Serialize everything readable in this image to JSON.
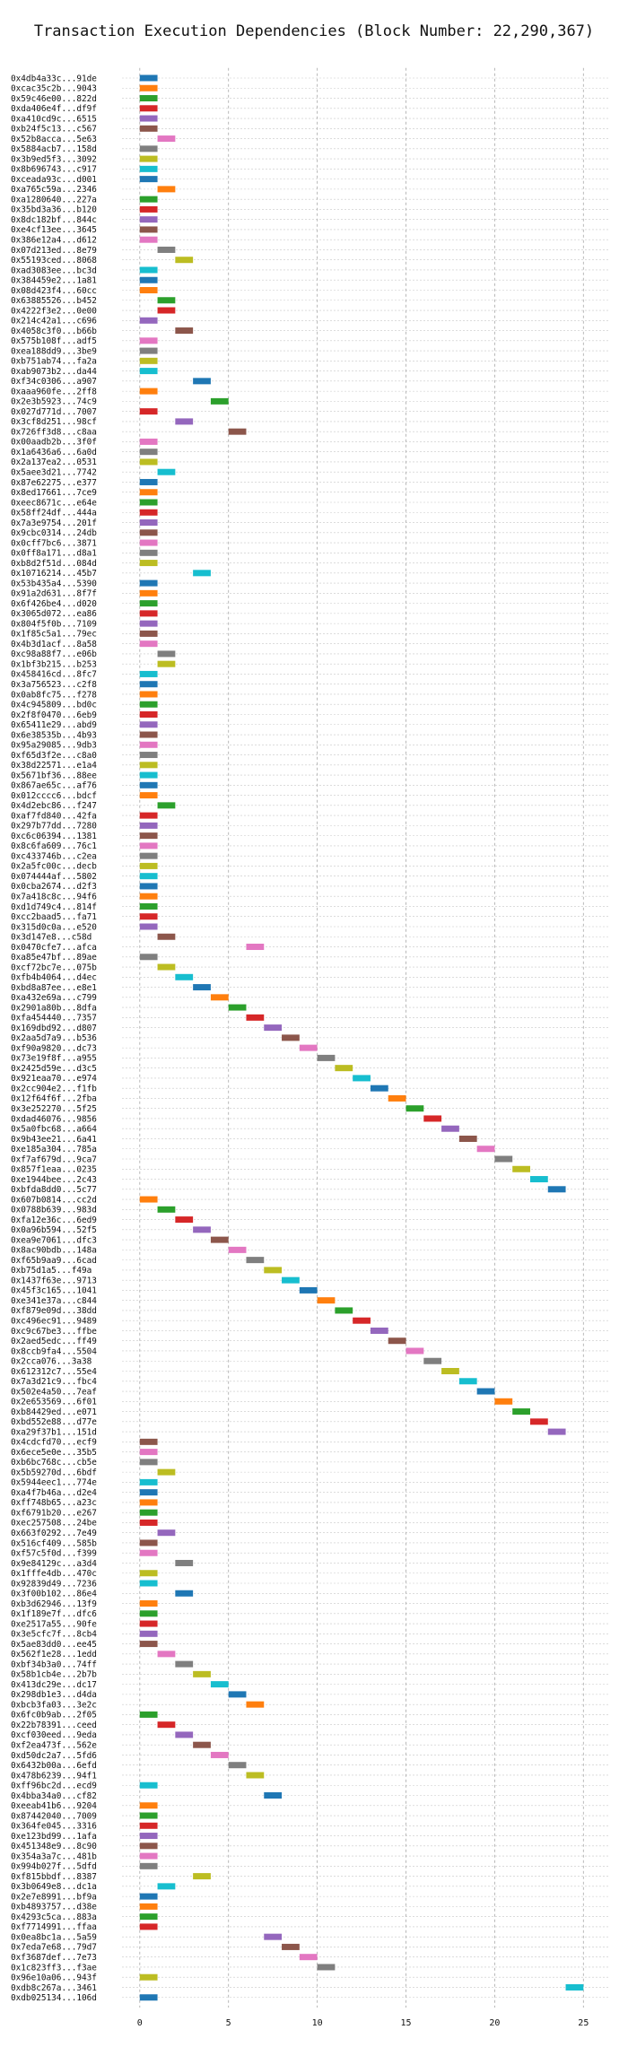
{
  "chart_data": {
    "type": "gantt",
    "title": "Transaction Execution Dependencies (Block Number: 22,290,367)",
    "xlabel": "",
    "ylabel": "",
    "xlim": [
      -1,
      26.5
    ],
    "xticks": [
      0,
      5,
      10,
      15,
      20,
      25
    ],
    "grid": true,
    "bar_width": 1,
    "palette": [
      "#1f77b4",
      "#ff7f0e",
      "#2ca02c",
      "#d62728",
      "#9467bd",
      "#8c564b",
      "#e377c2",
      "#7f7f7f",
      "#bcbd22",
      "#17becf"
    ],
    "transactions": [
      "0x4db4a33c...91de",
      "0xcac35c2b...9043",
      "0x59c46e00...822d",
      "0xda406e4f...df9f",
      "0xa410cd9c...6515",
      "0xb24f5c13...c567",
      "0x52b8acca...5e63",
      "0x5884acb7...158d",
      "0x3b9ed5f3...3092",
      "0x8b696743...c917",
      "0xceada93c...d001",
      "0xa765c59a...2346",
      "0xa1280640...227a",
      "0x35bd3a36...b120",
      "0x8dc182bf...844c",
      "0xe4cf13ee...3645",
      "0x386e12a4...d612",
      "0x07d213ed...8e79",
      "0x55193ced...8068",
      "0xad3083ee...bc3d",
      "0x384459e2...1a81",
      "0x08d423f4...60cc",
      "0x63885526...b452",
      "0x4222f3e2...0e00",
      "0x214c42a1...c696",
      "0x4058c3f0...b66b",
      "0x575b108f...adf5",
      "0xea188dd9...3be9",
      "0xb751ab74...fa2a",
      "0xab9073b2...da44",
      "0xf34c0306...a907",
      "0xaaa960fe...2ff8",
      "0x2e3b5923...74c9",
      "0x027d771d...7007",
      "0x3cf8d251...98cf",
      "0x726ff3d8...c8aa",
      "0x00aadb2b...3f0f",
      "0x1a6436a6...6a0d",
      "0x2a137ea2...0531",
      "0x5aee3d21...7742",
      "0x87e62275...e377",
      "0x8ed17661...7ce9",
      "0xeec8671c...e64e",
      "0x58ff24df...444a",
      "0x7a3e9754...201f",
      "0x9cbc0314...24db",
      "0x0cff7bc6...3871",
      "0x0ff8a171...d8a1",
      "0xb8d2f51d...084d",
      "0x10716214...45b7",
      "0x53b435a4...5390",
      "0x91a2d631...8f7f",
      "0x6f426be4...d020",
      "0x3065d072...ea86",
      "0x804f5f0b...7109",
      "0x1f85c5a1...79ec",
      "0x4b3d1acf...8a58",
      "0xc98a88f7...e06b",
      "0x1bf3b215...b253",
      "0x458416cd...8fc7",
      "0x3a756523...c2f8",
      "0x0ab8fc75...f278",
      "0x4c945809...bd0c",
      "0x2f8f0470...6eb9",
      "0x65411e29...abd9",
      "0x6e38535b...4b93",
      "0x95a29085...9db3",
      "0xf65d3f2e...c8a0",
      "0x38d22571...e1a4",
      "0x5671bf36...88ee",
      "0x867ae65c...af76",
      "0x012cccc6...bdcf",
      "0x4d2ebc86...f247",
      "0xaf7fd840...42fa",
      "0x297b77dd...7280",
      "0xc6c06394...1381",
      "0x8c6fa609...76c1",
      "0xc433746b...c2ea",
      "0x2a5fc00c...decb",
      "0x074444af...5802",
      "0x0cba2674...d2f3",
      "0x7a418c8c...94f6",
      "0xd1d749c4...814f",
      "0xcc2baad5...fa71",
      "0x315d0c0a...e520",
      "0x3d147e8...c58d",
      "0x0470cfe7...afca",
      "0xa85e47bf...89ae",
      "0xcf72bc7e...075b",
      "0xfb4b4064...d4ec",
      "0xbd8a87ee...e8e1",
      "0xa432e69a...c799",
      "0x2901a80b...8dfa",
      "0xfa454440...7357",
      "0x169dbd92...d807",
      "0x2aa5d7a9...b536",
      "0xf90a9820...dc73",
      "0x73e19f8f...a955",
      "0x2425d59e...d3c5",
      "0x921eaa70...e974",
      "0x2cc904e2...f1fb",
      "0x12f64f6f...2fba",
      "0x3e252270...5f25",
      "0xdad46076...9856",
      "0x5a0fbc68...a664",
      "0x9b43ee21...6a41",
      "0xe185a304...785a",
      "0xf7af679d...9ca7",
      "0x857f1eaa...0235",
      "0xe1944bee...2c43",
      "0xbfda8dd0...5c77",
      "0x607b0814...cc2d",
      "0x0788b639...983d",
      "0xfa12e36c...6ed9",
      "0x0a96b594...52f5",
      "0xea9e7061...dfc3",
      "0x8ac90bdb...148a",
      "0xf65b9aa9...6cad",
      "0xb75d1a5...f49a",
      "0x1437f63e...9713",
      "0x45f3c165...1041",
      "0xe341e37a...c844",
      "0xf879e09d...38dd",
      "0xc496ec91...9489",
      "0xc9c67be3...ffbe",
      "0x2aed5edc...ff49",
      "0x8ccb9fa4...5504",
      "0x2cca076...3a38",
      "0x612312c7...55e4",
      "0x7a3d21c9...fbc4",
      "0x502e4a50...7eaf",
      "0x2e653569...6f01",
      "0xb84429ed...e071",
      "0xbd552e88...d77e",
      "0xa29f37b1...151d",
      "0x4cdcfd70...ecf9",
      "0x6ece5e0e...35b5",
      "0xb6bc768c...cb5e",
      "0x5b59270d...6bdf",
      "0x5944eec1...774e",
      "0xa4f7b46a...d2e4",
      "0xff748b65...a23c",
      "0xf6791b20...e267",
      "0xec257508...24be",
      "0x663f0292...7e49",
      "0x516cf409...585b",
      "0xf57c5f0d...f399",
      "0x9e84129c...a3d4",
      "0x1fffe4db...470c",
      "0x92839d49...7236",
      "0x3f00b102...86e4",
      "0xb3d62946...13f9",
      "0x1f189e7f...dfc6",
      "0xe2517a55...90fe",
      "0x3e5cfc7f...8cb4",
      "0x5ae83dd0...ee45",
      "0x562f1e28...1edd",
      "0xbf34b3a0...74ff",
      "0x58b1cb4e...2b7b",
      "0x413dc29e...dc17",
      "0x298db1e3...d4da",
      "0xbcb3fa03...3e2c",
      "0x6fc0b9ab...2f05",
      "0x22b78391...ceed",
      "0xcf030eed...9eda",
      "0xf2ea473f...562e",
      "0xd50dc2a7...5fd6",
      "0x6432b00a...6efd",
      "0x478b6239...94f1",
      "0xff96bc2d...ecd9",
      "0x4bba34a0...cf82",
      "0xeeab41b6...9204",
      "0x87442040...7009",
      "0x364fe045...3316",
      "0xe123bd99...1afa",
      "0x451348e9...8c90",
      "0x354a3a7c...481b",
      "0x994b027f...5dfd",
      "0xf815bbdf...8387",
      "0x3b0649e8...dc1a",
      "0x2e7e8991...bf9a",
      "0xb4893757...d38e",
      "0x4293c5ca...883a",
      "0xf7714991...ffaa",
      "0x0ea8bc1a...5a59",
      "0x7eda7e68...79d7",
      "0xf3687def...7e73",
      "0x1c823ff3...f3ae",
      "0x96e10a06...943f",
      "0xdb8c267a...3461",
      "0xdb025134...106d"
    ],
    "start_step": [
      0,
      0,
      0,
      0,
      0,
      0,
      1,
      0,
      0,
      0,
      0,
      1,
      0,
      0,
      0,
      0,
      0,
      1,
      2,
      0,
      0,
      0,
      1,
      1,
      0,
      2,
      0,
      0,
      0,
      0,
      3,
      0,
      4,
      0,
      2,
      5,
      0,
      0,
      0,
      1,
      0,
      0,
      0,
      0,
      0,
      0,
      0,
      0,
      0,
      3,
      0,
      0,
      0,
      0,
      0,
      0,
      0,
      1,
      1,
      0,
      0,
      0,
      0,
      0,
      0,
      0,
      0,
      0,
      0,
      0,
      0,
      0,
      1,
      0,
      0,
      0,
      0,
      0,
      0,
      0,
      0,
      0,
      0,
      0,
      0,
      1,
      6,
      0,
      1,
      2,
      3,
      4,
      5,
      6,
      7,
      8,
      9,
      10,
      11,
      12,
      13,
      14,
      15,
      16,
      17,
      18,
      19,
      20,
      21,
      22,
      23,
      0,
      1,
      2,
      3,
      4,
      5,
      6,
      7,
      8,
      9,
      10,
      11,
      12,
      13,
      14,
      15,
      16,
      17,
      18,
      19,
      20,
      21,
      22,
      23,
      0,
      0,
      0,
      1,
      0,
      0,
      0,
      0,
      0,
      1,
      0,
      0,
      2,
      0,
      0,
      2,
      0,
      0,
      0,
      0,
      0,
      1,
      2,
      3,
      4,
      5,
      6,
      0,
      1,
      2,
      3,
      4,
      5,
      6,
      0,
      7,
      0,
      0,
      0,
      0,
      0,
      0,
      0,
      3,
      1,
      0,
      0,
      0,
      0,
      7,
      8,
      9,
      10,
      0,
      24,
      0
    ],
    "color_index": [
      0,
      1,
      2,
      3,
      4,
      5,
      6,
      7,
      8,
      9,
      0,
      1,
      2,
      3,
      4,
      5,
      6,
      7,
      8,
      9,
      0,
      1,
      2,
      3,
      4,
      5,
      6,
      7,
      8,
      9,
      0,
      1,
      2,
      3,
      4,
      5,
      6,
      7,
      8,
      9,
      0,
      1,
      2,
      3,
      4,
      5,
      6,
      7,
      8,
      9,
      0,
      1,
      2,
      3,
      4,
      5,
      6,
      7,
      8,
      9,
      0,
      1,
      2,
      3,
      4,
      5,
      6,
      7,
      8,
      9,
      0,
      1,
      2,
      3,
      4,
      5,
      6,
      7,
      8,
      9,
      0,
      1,
      2,
      3,
      4,
      5,
      6,
      7,
      8,
      9,
      0,
      1,
      2,
      3,
      4,
      5,
      6,
      7,
      8,
      9,
      0,
      1,
      2,
      3,
      4,
      5,
      6,
      7,
      8,
      9,
      0,
      1,
      2,
      3,
      4,
      5,
      6,
      7,
      8,
      9,
      0,
      1,
      2,
      3,
      4,
      5,
      6,
      7,
      8,
      9,
      0,
      1,
      2,
      3,
      4,
      5,
      6,
      7,
      8,
      9,
      0,
      1,
      2,
      3,
      4,
      5,
      6,
      7,
      8,
      9,
      0,
      1,
      2,
      3,
      4,
      5,
      6,
      7,
      8,
      9,
      0,
      1,
      2,
      3,
      4,
      5,
      6,
      7,
      8,
      9,
      0,
      1,
      2,
      3,
      4,
      5,
      6,
      7,
      8,
      9,
      0,
      1,
      2,
      3,
      4,
      5,
      6,
      7,
      8,
      9,
      0,
      1,
      2,
      3,
      4,
      5,
      6,
      7,
      8,
      9,
      0,
      1,
      2
    ]
  }
}
